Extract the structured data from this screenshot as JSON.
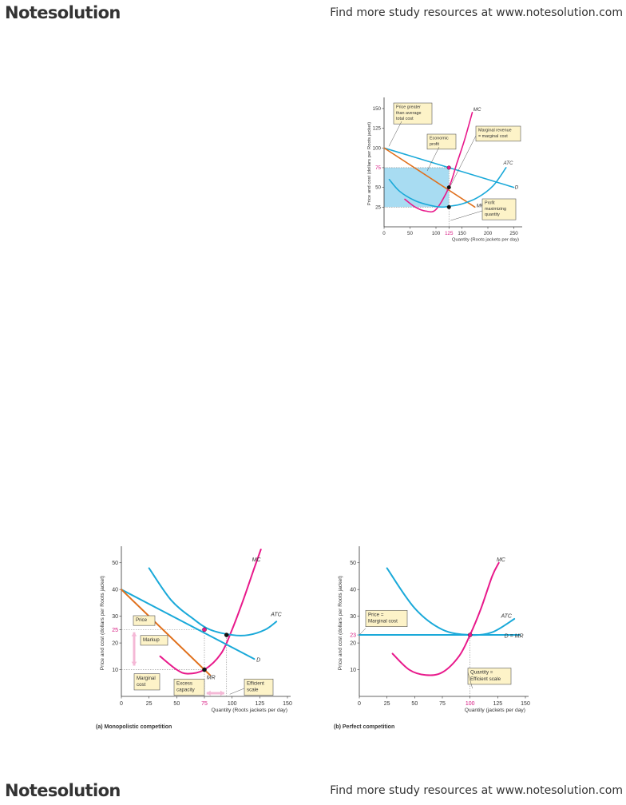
{
  "header": {
    "logo_text": "Notesolution",
    "tagline": "Find more study resources at www.notesolution.com"
  },
  "footer": {
    "logo_text": "Notesolution",
    "tagline": "Find more study resources at www.notesolution.com"
  },
  "colors": {
    "blue": "#1aa9d9",
    "magenta": "#e8198b",
    "orange": "#e0701c",
    "shade": "#a8dcf2",
    "callout_bg": "#fdf3c8",
    "arrow_pink": "#f4b8d6",
    "highlight_text": "#d6157f"
  },
  "chart_data": [
    {
      "type": "line",
      "title": "",
      "ylabel": "Price and cost (dollars per Roots jacket)",
      "xlabel": "Quantity (Roots jackets per day)",
      "xlim": [
        0,
        260
      ],
      "ylim": [
        0,
        160
      ],
      "xticks": [
        "0",
        "50",
        "100",
        "125",
        "150",
        "200",
        "250"
      ],
      "yticks": [
        "25",
        "50",
        "75",
        "100",
        "125",
        "150"
      ],
      "highlight_ticks": {
        "x": "125",
        "y": "75"
      },
      "shaded_region": {
        "x": [
          0,
          125
        ],
        "y": [
          25,
          75
        ],
        "label": "Economic profit"
      },
      "series": [
        {
          "name": "D",
          "x": [
            0,
            250
          ],
          "y": [
            100,
            50
          ]
        },
        {
          "name": "MR",
          "x": [
            0,
            175
          ],
          "y": [
            100,
            25
          ]
        },
        {
          "name": "MC",
          "x": [
            40,
            60,
            80,
            100,
            125,
            140,
            155,
            170
          ],
          "y": [
            35,
            25,
            20,
            22,
            50,
            80,
            110,
            145
          ]
        },
        {
          "name": "ATC",
          "x": [
            10,
            30,
            60,
            90,
            110,
            125,
            150,
            180,
            210,
            235
          ],
          "y": [
            60,
            45,
            33,
            27,
            25,
            26,
            29,
            37,
            52,
            75
          ]
        }
      ],
      "points": [
        {
          "x": 125,
          "y": 75,
          "color": "magenta"
        },
        {
          "x": 125,
          "y": 50,
          "color": "black"
        },
        {
          "x": 125,
          "y": 25,
          "color": "black"
        }
      ],
      "annotations": [
        "Price greater than average total cost",
        "Economic profit",
        "Marginal revenue = marginal cost",
        "Profit-maximizing quantity"
      ]
    },
    {
      "type": "line",
      "title": "(a) Monopolistic competition",
      "ylabel": "Price and cost (dollars per Roots jacket)",
      "xlabel": "Quantity (Roots jackets per day)",
      "xlim": [
        0,
        150
      ],
      "ylim": [
        0,
        55
      ],
      "xticks": [
        "0",
        "25",
        "50",
        "75",
        "100",
        "125",
        "150"
      ],
      "yticks": [
        "10",
        "20",
        "25",
        "30",
        "40",
        "50"
      ],
      "highlight_ticks": {
        "x": "75",
        "y": "25"
      },
      "series": [
        {
          "name": "MC",
          "x": [
            35,
            50,
            60,
            75,
            90,
            100,
            110,
            120,
            126
          ],
          "y": [
            15,
            10,
            8.5,
            10,
            16,
            25,
            36,
            48,
            55
          ]
        },
        {
          "name": "ATC",
          "x": [
            25,
            45,
            65,
            80,
            100,
            115,
            130,
            140
          ],
          "y": [
            48,
            36,
            29,
            25,
            23,
            23,
            25,
            28
          ]
        },
        {
          "name": "D",
          "x": [
            0,
            120
          ],
          "y": [
            40,
            14
          ]
        },
        {
          "name": "MR",
          "x": [
            0,
            80
          ],
          "y": [
            40,
            8
          ]
        }
      ],
      "points": [
        {
          "x": 75,
          "y": 25,
          "color": "magenta"
        },
        {
          "x": 75,
          "y": 10,
          "color": "black"
        },
        {
          "x": 95,
          "y": 23,
          "color": "black"
        }
      ],
      "annotations": [
        "Price",
        "Markup",
        "Marginal cost",
        "Excess capacity",
        "Efficient scale"
      ]
    },
    {
      "type": "line",
      "title": "(b) Perfect competition",
      "ylabel": "Price and cost (dollars per Roots jacket)",
      "xlabel": "Quantity (jackets per day)",
      "xlim": [
        0,
        150
      ],
      "ylim": [
        0,
        55
      ],
      "xticks": [
        "0",
        "25",
        "50",
        "75",
        "100",
        "125",
        "150"
      ],
      "yticks": [
        "10",
        "20",
        "23",
        "30",
        "40",
        "50"
      ],
      "highlight_ticks": {
        "x": "100",
        "y": "23"
      },
      "series": [
        {
          "name": "MC",
          "x": [
            30,
            45,
            60,
            75,
            90,
            100,
            110,
            120,
            126
          ],
          "y": [
            16,
            10,
            8,
            9,
            15,
            23,
            33,
            45,
            50
          ]
        },
        {
          "name": "ATC",
          "x": [
            25,
            50,
            75,
            100,
            120,
            140
          ],
          "y": [
            48,
            33,
            25,
            23,
            24,
            29
          ]
        },
        {
          "name": "D = MR",
          "x": [
            0,
            145
          ],
          "y": [
            23,
            23
          ]
        }
      ],
      "points": [
        {
          "x": 100,
          "y": 23,
          "color": "magenta"
        }
      ],
      "annotations": [
        "Price = Marginal cost",
        "Quantity = Efficient scale"
      ]
    }
  ]
}
